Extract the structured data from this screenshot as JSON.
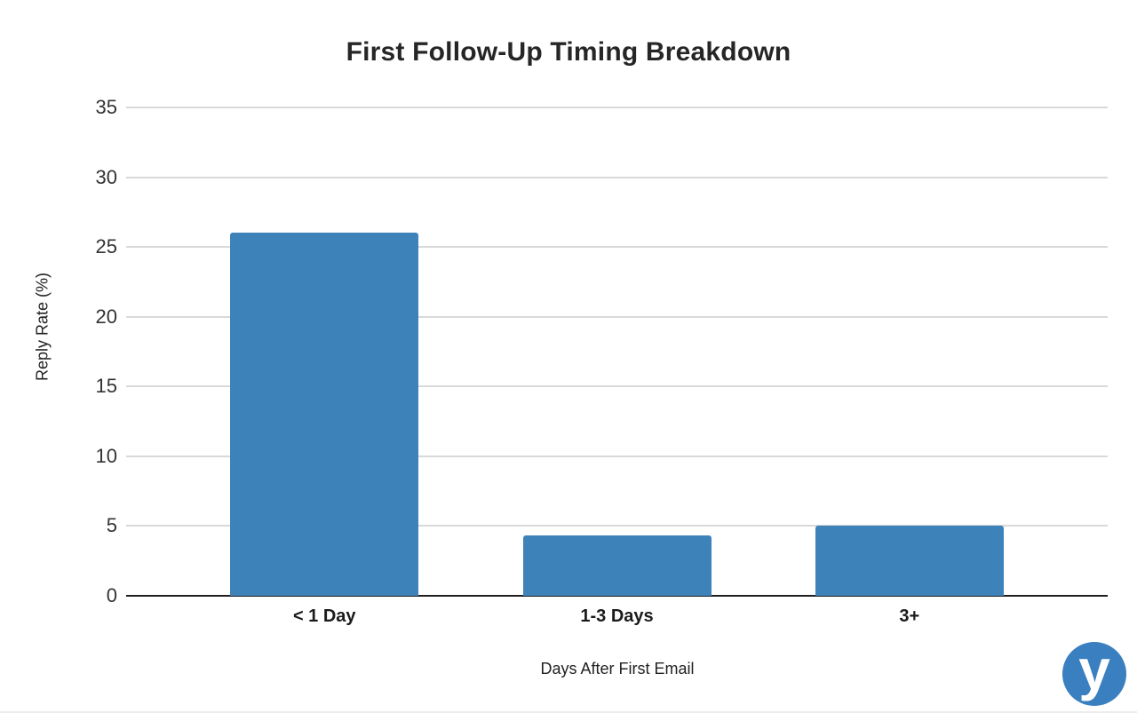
{
  "chart_data": {
    "type": "bar",
    "title": "First Follow-Up Timing Breakdown",
    "categories": [
      "< 1 Day",
      "1-3 Days",
      "3+"
    ],
    "values": [
      26,
      4.3,
      5
    ],
    "xlabel": "Days After First Email",
    "ylabel": "Reply Rate (%)",
    "ylim": [
      0,
      35
    ],
    "yticks": [
      0,
      5,
      10,
      15,
      20,
      25,
      30,
      35
    ],
    "grid": true,
    "legend": false,
    "bar_color": "#3e82ba",
    "gridline_color": "#d9d9d9",
    "axis_line_color": "#1f1f1f"
  },
  "logo": {
    "letter": "y",
    "color": "#3a7fbf"
  }
}
